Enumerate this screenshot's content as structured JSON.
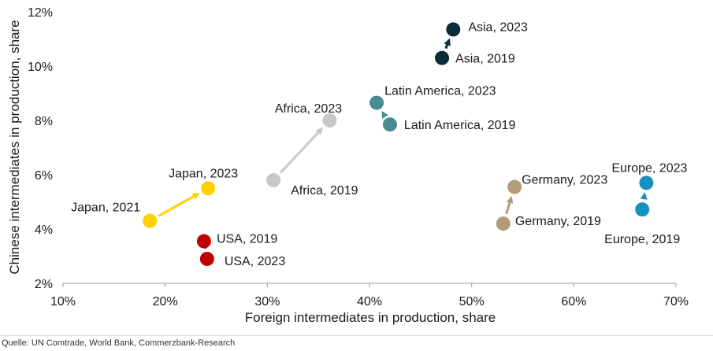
{
  "chart_data": {
    "type": "scatter",
    "xlabel": "Foreign intermediates in production, share",
    "ylabel": "Chinese intermediates in production, share",
    "xlim": [
      10,
      70
    ],
    "ylim": [
      2,
      12
    ],
    "x_ticks": [
      "10%",
      "20%",
      "30%",
      "40%",
      "50%",
      "60%",
      "70%"
    ],
    "y_ticks": [
      "2%",
      "4%",
      "6%",
      "8%",
      "10%",
      "12%"
    ],
    "grid": false,
    "series": [
      {
        "color": "#FFD000",
        "points": [
          {
            "label": "Japan, 2021",
            "x": 18.5,
            "y": 4.3
          },
          {
            "label": "Japan, 2023",
            "x": 24.2,
            "y": 5.5
          }
        ]
      },
      {
        "color": "#C00000",
        "points": [
          {
            "label": "USA, 2019",
            "x": 23.8,
            "y": 3.55
          },
          {
            "label": "USA, 2023",
            "x": 24.1,
            "y": 2.9
          }
        ]
      },
      {
        "color": "#C8C8C8",
        "points": [
          {
            "label": "Africa, 2019",
            "x": 30.6,
            "y": 5.8
          },
          {
            "label": "Africa, 2023",
            "x": 36.1,
            "y": 8.0
          }
        ]
      },
      {
        "color": "#4A8A92",
        "points": [
          {
            "label": "Latin America, 2019",
            "x": 42.0,
            "y": 7.85
          },
          {
            "label": "Latin America, 2023",
            "x": 40.7,
            "y": 8.65
          }
        ]
      },
      {
        "color": "#0E2B3A",
        "points": [
          {
            "label": "Asia, 2019",
            "x": 47.1,
            "y": 10.3
          },
          {
            "label": "Asia, 2023",
            "x": 48.2,
            "y": 11.35
          }
        ]
      },
      {
        "color": "#B39B7A",
        "points": [
          {
            "label": "Germany, 2019",
            "x": 53.1,
            "y": 4.2
          },
          {
            "label": "Germany, 2023",
            "x": 54.2,
            "y": 5.55
          }
        ]
      },
      {
        "color": "#1591C0",
        "points": [
          {
            "label": "Europe, 2019",
            "x": 66.7,
            "y": 4.72
          },
          {
            "label": "Europe, 2023",
            "x": 67.1,
            "y": 5.7
          }
        ]
      }
    ]
  },
  "source": "Quelle: UN Comtrade, World Bank, Commerzbank-Research"
}
